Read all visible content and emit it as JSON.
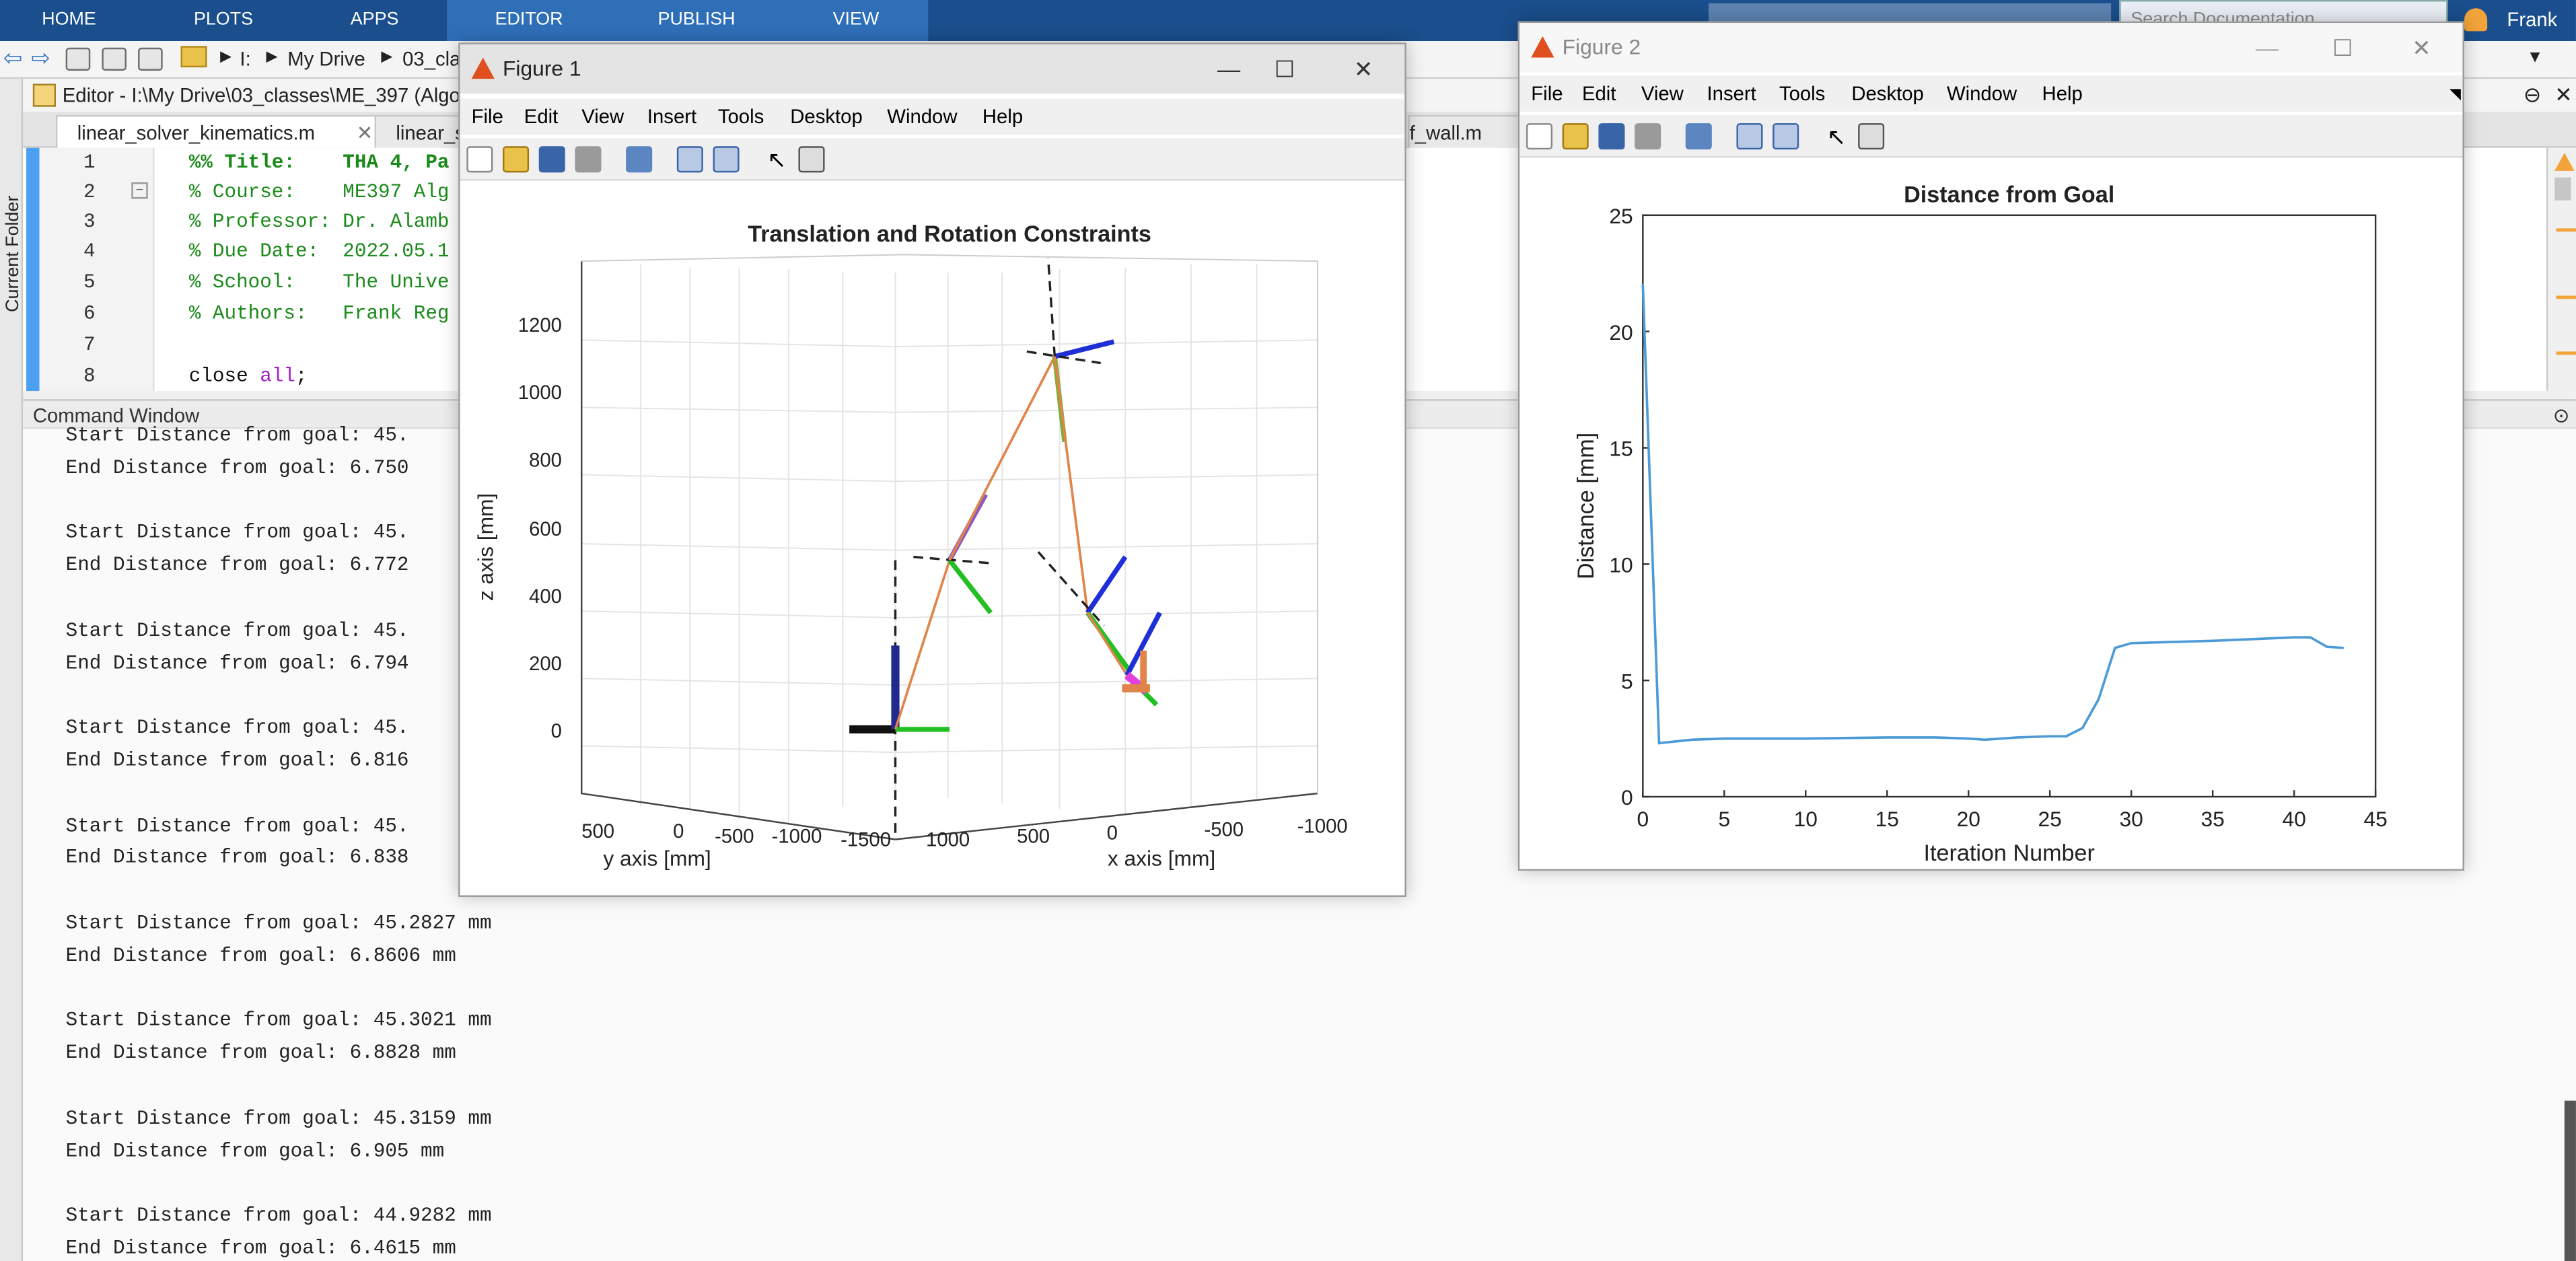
{
  "toolstrip": {
    "tabs": [
      "HOME",
      "PLOTS",
      "APPS",
      "EDITOR",
      "PUBLISH",
      "VIEW"
    ],
    "search_placeholder": "Search Documentation",
    "user": "Frank"
  },
  "address": {
    "segments": [
      "I:",
      "My Drive",
      "03_cla"
    ]
  },
  "left_panel": {
    "label": "Current Folder"
  },
  "editor": {
    "title": "Editor - I:\\My Drive\\03_classes\\ME_397 (Algo",
    "tabs": [
      "linear_solver_kinematics.m",
      "linear_sol",
      "f_wall.m"
    ],
    "line_numbers": [
      "1",
      "2",
      "3",
      "4",
      "5",
      "6",
      "7",
      "8"
    ],
    "lines": [
      "%% Title:    THA 4, Pa",
      "% Course:    ME397 Alg",
      "% Professor: Dr. Alamb",
      "% Due Date:  2022.05.1",
      "% School:    The Unive",
      "% Authors:   Frank Reg",
      "",
      ""
    ],
    "line8": {
      "kw": "close ",
      "arg": "all",
      "end": ";"
    }
  },
  "command_window": {
    "title": "Command Window",
    "lines": [
      "Start Distance from goal: 45.",
      "End Distance from goal: 6.750",
      "",
      "Start Distance from goal: 45.",
      "End Distance from goal: 6.772",
      "",
      "Start Distance from goal: 45.",
      "End Distance from goal: 6.794",
      "",
      "Start Distance from goal: 45.",
      "End Distance from goal: 6.816",
      "",
      "Start Distance from goal: 45.",
      "End Distance from goal: 6.838",
      "",
      "Start Distance from goal: 45.2827 mm",
      "End Distance from goal: 6.8606 mm",
      "",
      "Start Distance from goal: 45.3021 mm",
      "End Distance from goal: 6.8828 mm",
      "",
      "Start Distance from goal: 45.3159 mm",
      "End Distance from goal: 6.905 mm",
      "",
      "Start Distance from goal: 44.9282 mm",
      "End Distance from goal: 6.4615 mm"
    ]
  },
  "figure1": {
    "title": "Figure 1",
    "menu": [
      "File",
      "Edit",
      "View",
      "Insert",
      "Tools",
      "Desktop",
      "Window",
      "Help"
    ],
    "plot_title": "Translation and Rotation Constraints",
    "zlabel": "z axis [mm]",
    "ylabel": "y axis [mm]",
    "xlabel": "x axis [mm]",
    "zticks": [
      "1200",
      "1000",
      "800",
      "600",
      "400",
      "200",
      "0"
    ],
    "yticks": [
      "500",
      "0",
      "-500",
      "-1000",
      "-1500"
    ],
    "xticks": [
      "1000",
      "500",
      "0",
      "-500",
      "-1000"
    ]
  },
  "figure2": {
    "title": "Figure 2",
    "menu": [
      "File",
      "Edit",
      "View",
      "Insert",
      "Tools",
      "Desktop",
      "Window",
      "Help"
    ]
  },
  "chart_data": {
    "type": "line",
    "title": "Distance from Goal",
    "xlabel": "Iteration Number",
    "ylabel": "Distance [mm]",
    "xlim": [
      0,
      45
    ],
    "ylim": [
      0,
      25
    ],
    "xticks": [
      0,
      5,
      10,
      15,
      20,
      25,
      30,
      35,
      40,
      45
    ],
    "yticks": [
      0,
      5,
      10,
      15,
      20,
      25
    ],
    "color": "#4c9bd6",
    "series": [
      {
        "x": [
          0,
          1,
          3,
          5,
          10,
          15,
          18,
          20,
          21,
          23,
          25,
          26,
          27,
          28,
          29,
          30,
          35,
          40,
          41,
          42,
          43
        ],
        "values": [
          22.0,
          2.3,
          2.45,
          2.5,
          2.5,
          2.55,
          2.55,
          2.5,
          2.45,
          2.55,
          2.6,
          2.6,
          2.95,
          4.2,
          6.4,
          6.6,
          6.7,
          6.85,
          6.85,
          6.45,
          6.4
        ]
      }
    ]
  }
}
